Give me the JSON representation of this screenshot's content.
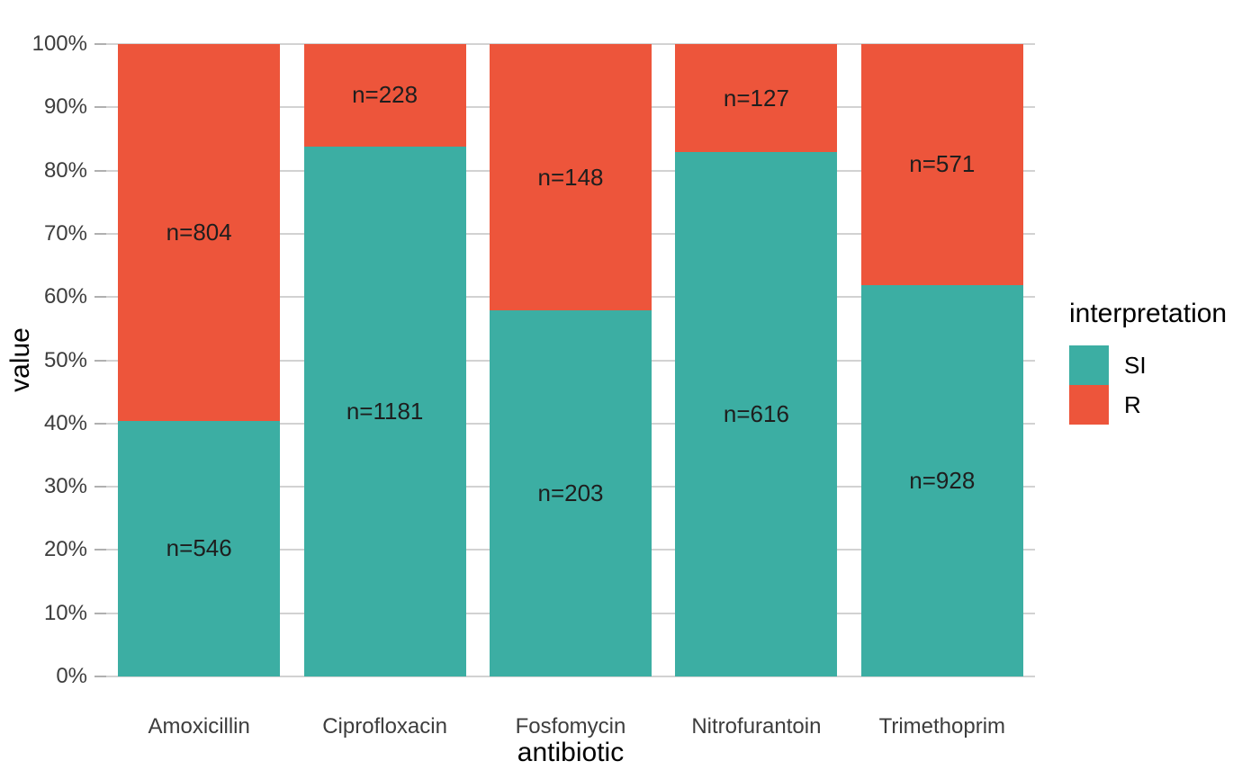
{
  "chart_data": {
    "type": "bar",
    "stacked": true,
    "percent_scale": true,
    "title": "",
    "xlabel": "antibiotic",
    "ylabel": "value",
    "categories": [
      "Amoxicillin",
      "Ciprofloxacin",
      "Fosfomycin",
      "Nitrofurantoin",
      "Trimethoprim"
    ],
    "series": [
      {
        "name": "SI",
        "color": "#3caea3",
        "counts": [
          546,
          1181,
          203,
          616,
          928
        ],
        "percents": [
          40.44,
          83.82,
          57.83,
          82.91,
          61.91
        ],
        "labels": [
          "n=546",
          "n=1181",
          "n=203",
          "n=616",
          "n=928"
        ]
      },
      {
        "name": "R",
        "color": "#ed553b",
        "counts": [
          804,
          228,
          148,
          127,
          571
        ],
        "percents": [
          59.56,
          16.18,
          42.17,
          17.09,
          38.09
        ],
        "labels": [
          "n=804",
          "n=228",
          "n=148",
          "n=127",
          "n=571"
        ]
      }
    ],
    "y_ticks": [
      "0%",
      "10%",
      "20%",
      "30%",
      "40%",
      "50%",
      "60%",
      "70%",
      "80%",
      "90%",
      "100%"
    ],
    "ylim": [
      0,
      100
    ],
    "grid": true,
    "legend": {
      "title": "interpretation",
      "position": "right",
      "entries": [
        {
          "label": "SI",
          "color": "#3caea3"
        },
        {
          "label": "R",
          "color": "#ed553b"
        }
      ]
    }
  },
  "colors": {
    "si": "#3caea3",
    "r": "#ed553b",
    "gridline": "#d2d2d2",
    "tick": "#b0b0b0",
    "tick_label": "#3d3d3d",
    "bar_label": "#1e1e1e",
    "axis_title": "#000000",
    "background": "#ffffff"
  }
}
